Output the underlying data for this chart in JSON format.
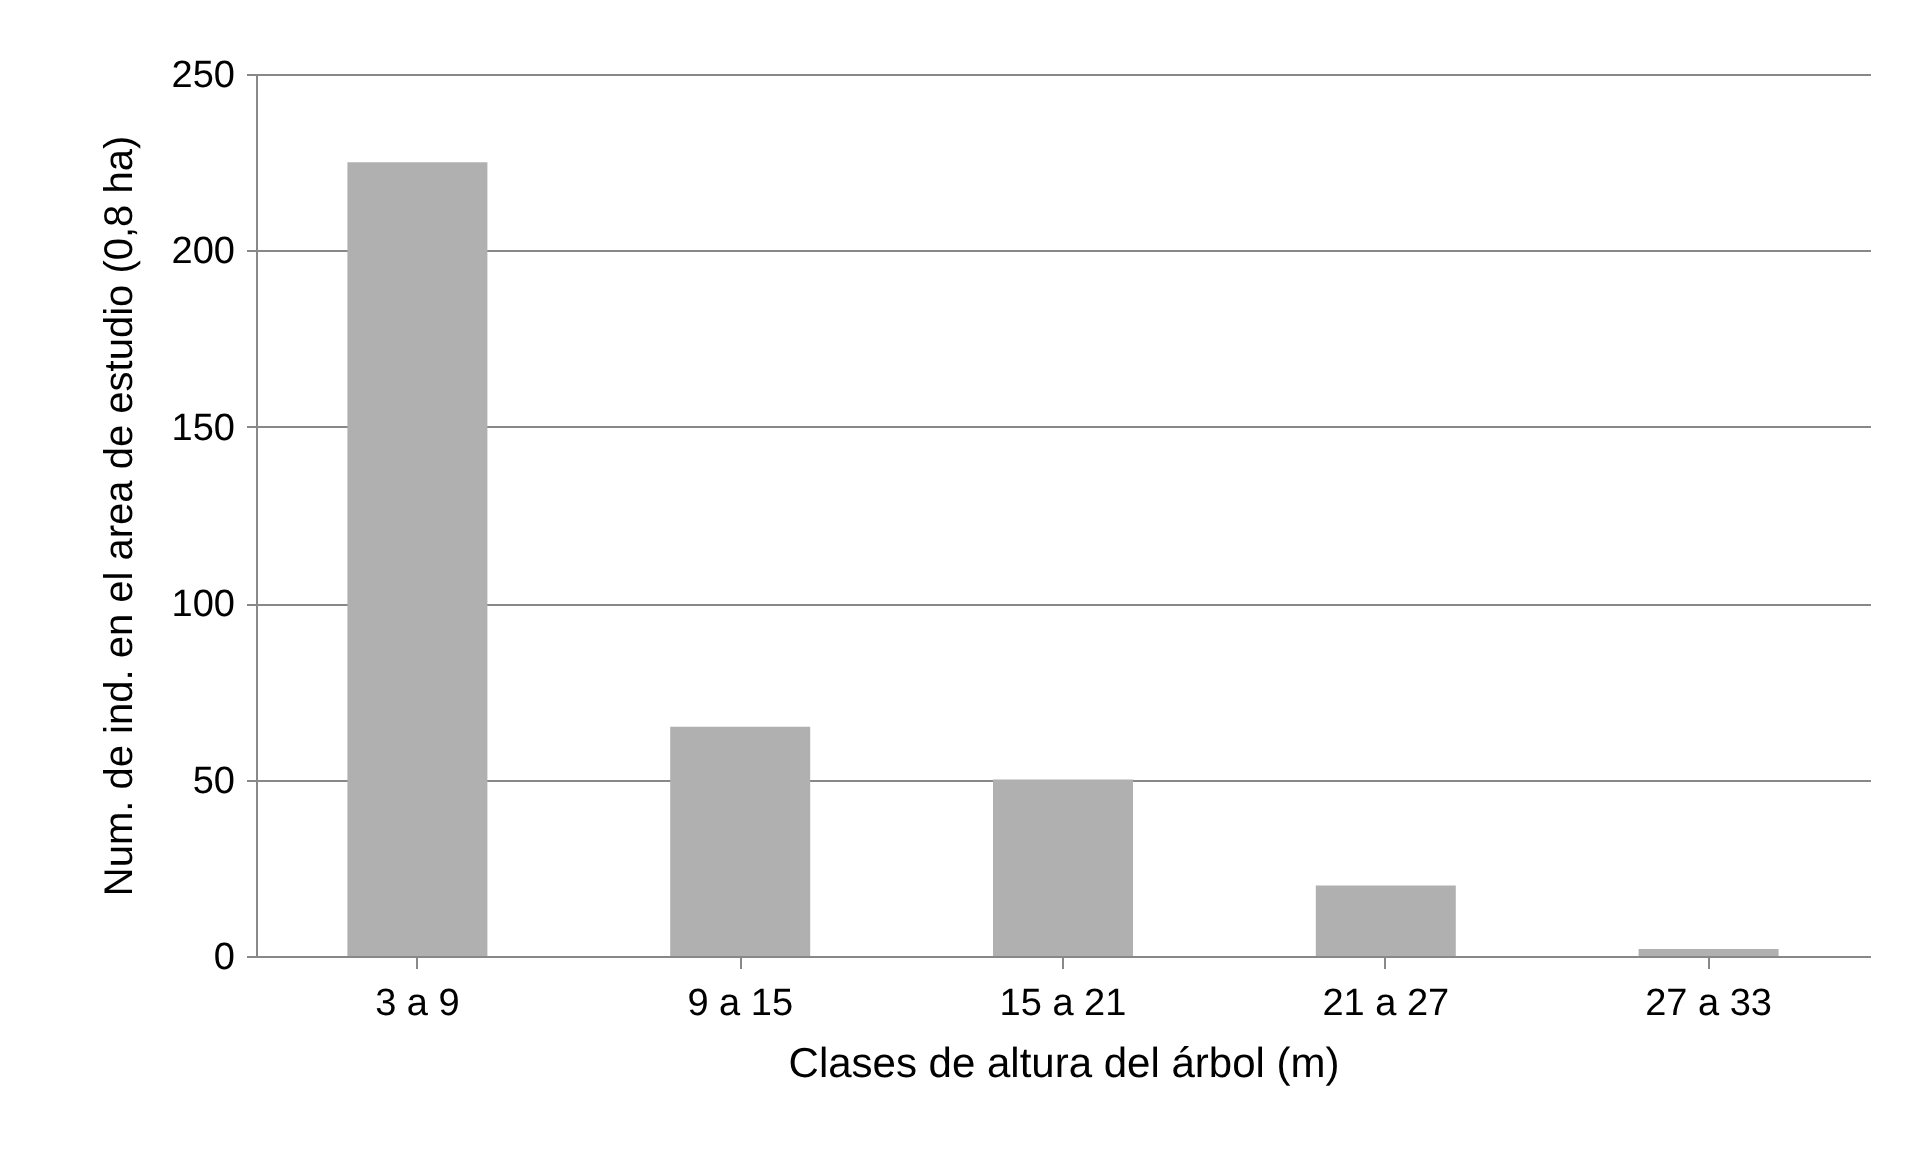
{
  "chart_data": {
    "type": "bar",
    "xlabel": "Clases de altura del árbol (m)",
    "ylabel": "Num. de ind. en el area de estudio (0,8 ha)",
    "categories": [
      "3 a 9",
      "9 a 15",
      "15 a 21",
      "21 a 27",
      "27 a 33"
    ],
    "values": [
      225,
      65,
      50,
      20,
      2
    ],
    "color": "#b0b0b0",
    "ylim": [
      0,
      250
    ],
    "yticks": [
      0,
      50,
      100,
      150,
      200,
      250
    ],
    "grid": "y"
  }
}
